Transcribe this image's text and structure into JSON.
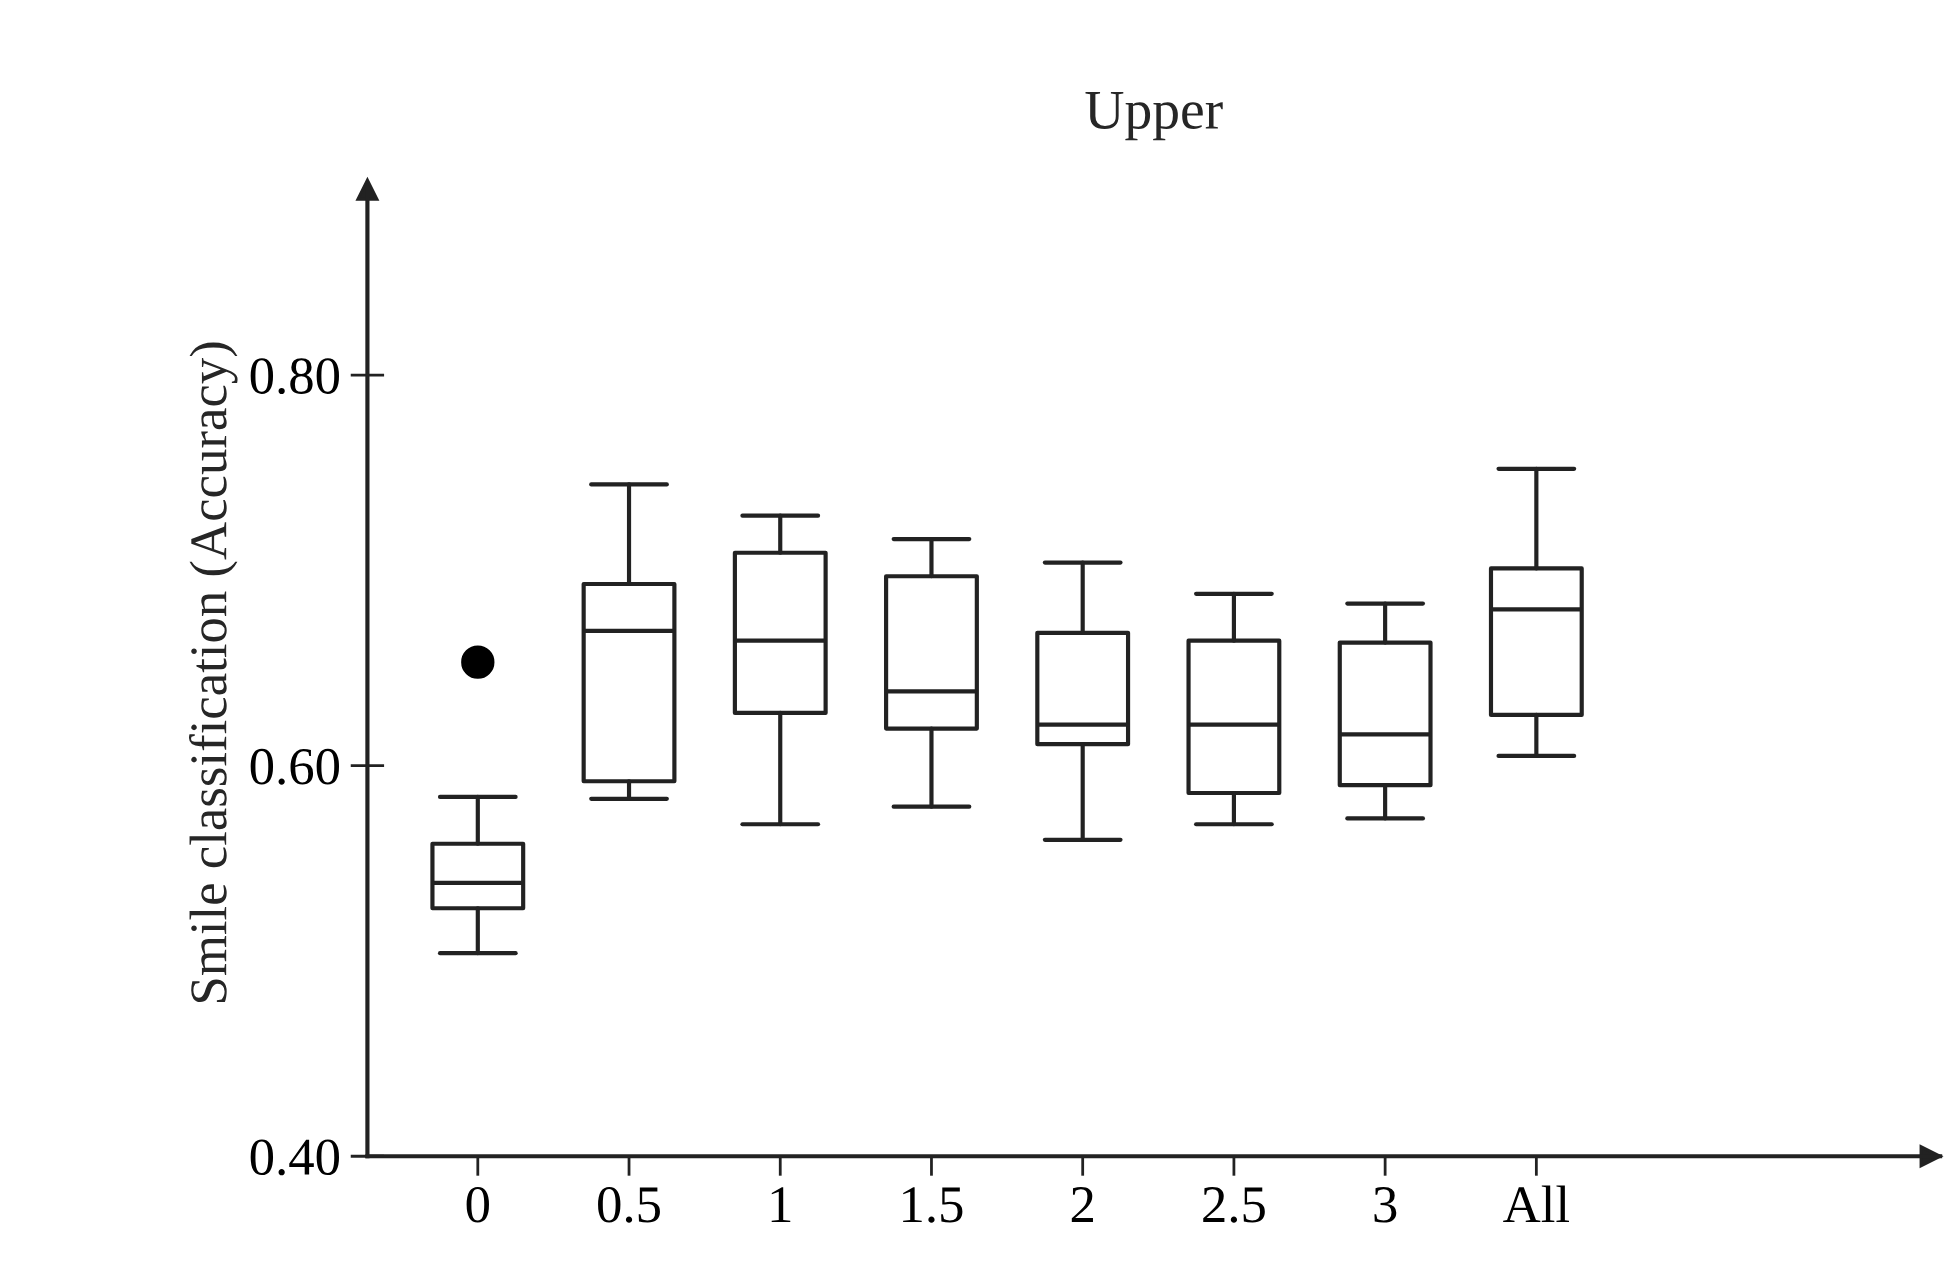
{
  "chart_data": {
    "type": "box",
    "title": "Upper",
    "ylabel": "Smile classification (Accuracy)",
    "categories": [
      "0",
      "0.5",
      "1",
      "1.5",
      "2",
      "2.5",
      "3",
      "All"
    ],
    "boxes": [
      {
        "low": 0.504,
        "q1": 0.527,
        "median": 0.54,
        "q3": 0.56,
        "high": 0.584,
        "outliers": [
          0.653
        ]
      },
      {
        "low": 0.583,
        "q1": 0.592,
        "median": 0.669,
        "q3": 0.693,
        "high": 0.744
      },
      {
        "low": 0.57,
        "q1": 0.627,
        "median": 0.664,
        "q3": 0.709,
        "high": 0.728
      },
      {
        "low": 0.579,
        "q1": 0.619,
        "median": 0.638,
        "q3": 0.697,
        "high": 0.716
      },
      {
        "low": 0.562,
        "q1": 0.611,
        "median": 0.621,
        "q3": 0.668,
        "high": 0.704
      },
      {
        "low": 0.57,
        "q1": 0.586,
        "median": 0.621,
        "q3": 0.664,
        "high": 0.688
      },
      {
        "low": 0.573,
        "q1": 0.59,
        "median": 0.616,
        "q3": 0.663,
        "high": 0.683
      },
      {
        "low": 0.605,
        "q1": 0.626,
        "median": 0.68,
        "q3": 0.701,
        "high": 0.752
      }
    ],
    "ylim": [
      0.4,
      0.895
    ],
    "yticks": [
      {
        "value": 0.4,
        "label": "0.40"
      },
      {
        "value": 0.6,
        "label": "0.60"
      },
      {
        "value": 0.8,
        "label": "0.80"
      }
    ],
    "grid": false,
    "legend": false
  }
}
